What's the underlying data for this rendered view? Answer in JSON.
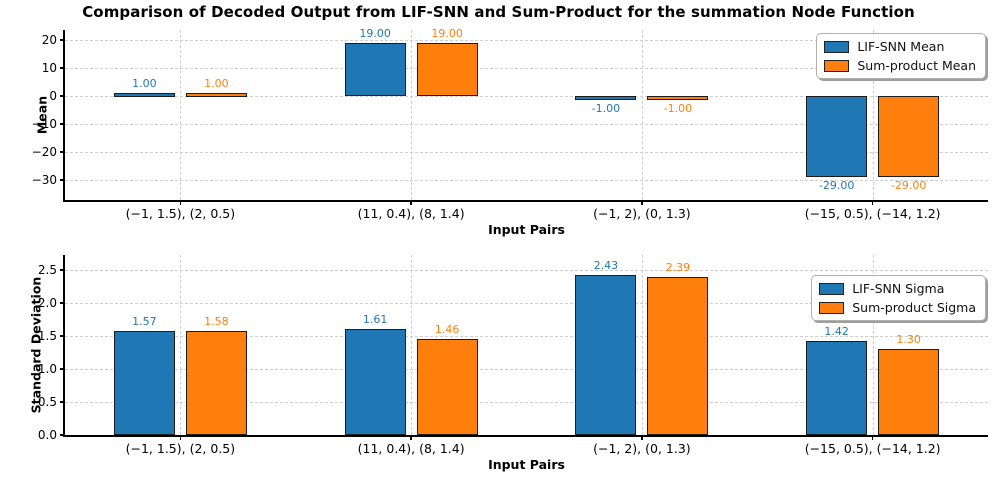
{
  "title": "Comparison of Decoded Output from LIF-SNN and Sum-Product for the summation Node Function",
  "colors": {
    "blue": "#1f77b4",
    "orange": "#ff7f0e",
    "bar_edge": "#1c1c1c",
    "grid": "#cfcfcf",
    "spine": "#000000",
    "background": "#ffffff",
    "legend_border": "#b0b0b0",
    "legend_shadow": "#9e9e9e"
  },
  "chart_data": [
    {
      "type": "bar",
      "title": "",
      "xlabel": "Input Pairs",
      "ylabel": "Mean",
      "categories": [
        "(−1, 1.5), (2, 0.5)",
        "(11, 0.4), (8, 1.4)",
        "(−1, 2), (0, 1.3)",
        "(−15, 0.5), (−14, 1.2)"
      ],
      "series": [
        {
          "name": "LIF-SNN Mean",
          "color": "#1f77b4",
          "values": [
            1.0,
            19.0,
            -1.0,
            -29.0
          ]
        },
        {
          "name": "Sum-product Mean",
          "color": "#ff7f0e",
          "values": [
            1.0,
            19.0,
            -1.0,
            -29.0
          ]
        }
      ],
      "value_labels": [
        [
          "1.00",
          "19.00",
          "-1.00",
          "-29.00"
        ],
        [
          "1.00",
          "19.00",
          "-1.00",
          "-29.00"
        ]
      ],
      "ylim": [
        -37.2,
        23.6
      ],
      "yticks": [
        20,
        10,
        0,
        -10,
        -20,
        -30
      ],
      "ytick_labels": [
        "20",
        "10",
        "0",
        "−10",
        "−20",
        "−30"
      ],
      "grid": true,
      "legend_position": "upper right"
    },
    {
      "type": "bar",
      "title": "",
      "xlabel": "Input Pairs",
      "ylabel": "Standard Deviation",
      "categories": [
        "(−1, 1.5), (2, 0.5)",
        "(11, 0.4), (8, 1.4)",
        "(−1, 2), (0, 1.3)",
        "(−15, 0.5), (−14, 1.2)"
      ],
      "series": [
        {
          "name": "LIF-SNN Sigma",
          "color": "#1f77b4",
          "values": [
            1.57,
            1.61,
            2.43,
            1.42
          ]
        },
        {
          "name": "Sum-product Sigma",
          "color": "#ff7f0e",
          "values": [
            1.58,
            1.46,
            2.39,
            1.3
          ]
        }
      ],
      "value_labels": [
        [
          "1.57",
          "1.61",
          "2.43",
          "1.42"
        ],
        [
          "1.58",
          "1.46",
          "2.39",
          "1.30"
        ]
      ],
      "ylim": [
        0,
        2.73
      ],
      "yticks": [
        2.5,
        2.0,
        1.5,
        1.0,
        0.5,
        0.0
      ],
      "ytick_labels": [
        "2.5",
        "2.0",
        "1.5",
        "1.0",
        "0.5",
        "0.0"
      ],
      "grid": true,
      "legend_position": "upper right"
    }
  ]
}
